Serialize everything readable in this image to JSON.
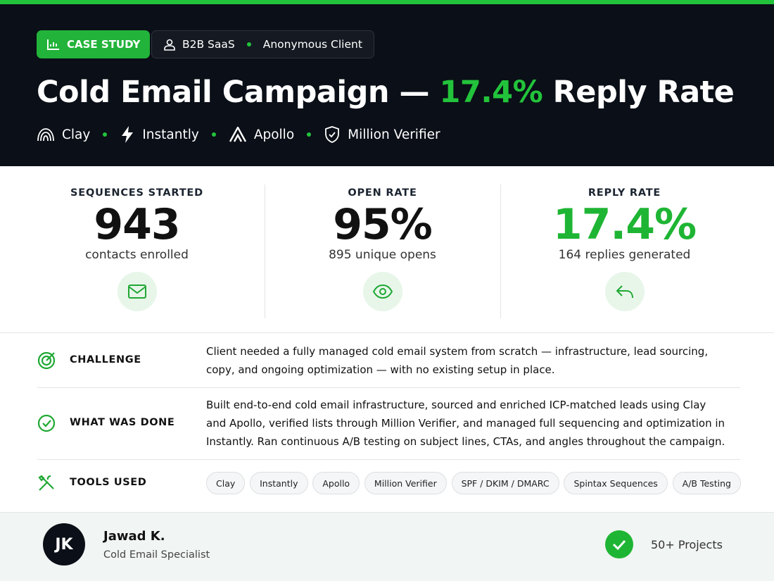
{
  "header": {
    "badge": "CASE STUDY",
    "industry": "B2B SaaS",
    "client": "Anonymous Client",
    "title_parts": [
      "Cold Email Campaign —",
      "17.4%",
      "Reply Rate"
    ],
    "tools": [
      "Clay",
      "Instantly",
      "Apollo",
      "Million Verifier"
    ]
  },
  "stats": [
    {
      "label": "SEQUENCES STARTED",
      "value": "943",
      "note": "contacts enrolled"
    },
    {
      "label": "OPEN RATE",
      "value": "95%",
      "note": "895 unique opens"
    },
    {
      "label": "REPLY RATE",
      "value": "17.4%",
      "note": "164 replies generated"
    }
  ],
  "details": [
    {
      "label": "CHALLENGE",
      "text": "Client needed a fully managed cold email system from scratch — infrastructure, lead sourcing, copy, and ongoing optimization — with no existing setup in place."
    },
    {
      "label": "WHAT WAS DONE",
      "text": "Built end-to-end cold email infrastructure, sourced and enriched ICP-matched leads using Clay and Apollo, verified lists through Million Verifier, and managed full sequencing and optimization in Instantly. Ran continuous A/B testing on subject lines, CTAs, and angles throughout the campaign."
    },
    {
      "label": "TOOLS USED",
      "tags": [
        "Clay",
        "Instantly",
        "Apollo",
        "Million Verifier",
        "SPF / DKIM / DMARC",
        "Spintax Sequences",
        "A/B Testing"
      ]
    }
  ],
  "footer": {
    "initials": "JK",
    "name": "Jawad K.",
    "role": "Cold Email Specialist",
    "projects": "50+ Projects"
  }
}
